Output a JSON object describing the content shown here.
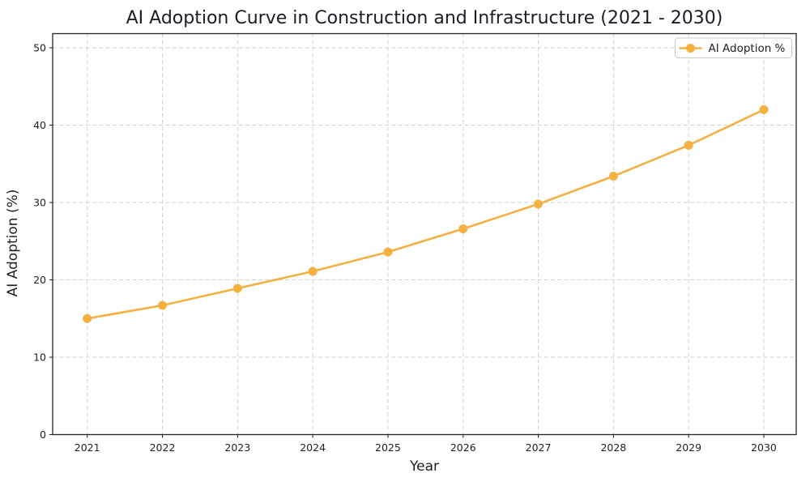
{
  "chart_data": {
    "type": "line",
    "title": "AI Adoption Curve in Construction and Infrastructure (2021 - 2030)",
    "xlabel": "Year",
    "ylabel": "AI Adoption (%)",
    "categories": [
      "2021",
      "2022",
      "2023",
      "2024",
      "2025",
      "2026",
      "2027",
      "2028",
      "2029",
      "2030"
    ],
    "series": [
      {
        "name": "AI Adoption %",
        "values": [
          15.0,
          16.7,
          18.9,
          21.1,
          23.6,
          26.6,
          29.8,
          33.4,
          37.4,
          42.0
        ],
        "color": "#f5b041",
        "marker": "circle"
      }
    ],
    "yticks": [
      0,
      10,
      20,
      30,
      40,
      50
    ],
    "ylim": [
      0,
      52
    ],
    "grid": true,
    "grid_style": "dashed",
    "legend_position": "upper right"
  },
  "colors": {
    "line": "#f5b041",
    "marker": "#f5b041",
    "grid": "#cfcfcf",
    "spine": "#262626",
    "tick_text": "#1f1f1f",
    "title_text": "#1c1c28",
    "legend_border": "#c9c9c9",
    "legend_background": "#ffffff",
    "plot_background": "#ffffff"
  }
}
